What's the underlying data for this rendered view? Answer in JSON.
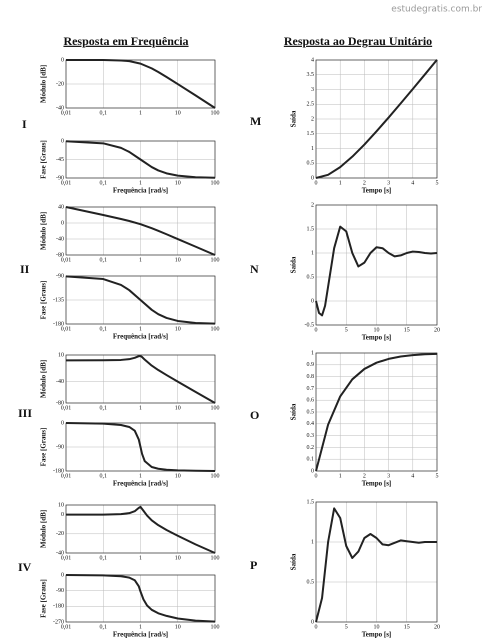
{
  "page": {
    "watermark": "estudegratis.com.br",
    "left_title": "Resposta em Frequência",
    "right_title": "Resposta ao Degrau Unitário",
    "row_labels": [
      "I",
      "II",
      "III",
      "IV"
    ],
    "step_labels": [
      "M",
      "N",
      "O",
      "P"
    ]
  },
  "chart_data": [
    {
      "type": "line",
      "xscale": "log",
      "ylabel": "Módulo [dB]",
      "color": "#222",
      "grid": true,
      "x": [
        0.01,
        0.1,
        0.3,
        0.5,
        1,
        2,
        3,
        5,
        10,
        30,
        100
      ],
      "values": [
        0,
        -0.04,
        -0.38,
        -0.97,
        -3.01,
        -6.99,
        -10,
        -14.15,
        -20.04,
        -29.5,
        -40
      ],
      "xlim": [
        0.01,
        100
      ],
      "xticks": [
        {
          "value": 0.01,
          "label": "0,01"
        },
        {
          "value": 0.1,
          "label": "0,1"
        },
        1,
        10,
        100
      ],
      "ylim": [
        -40,
        0
      ],
      "yticks": [
        -40,
        -20,
        0
      ]
    },
    {
      "type": "line",
      "xscale": "log",
      "ylabel": "Fase [Graus]",
      "xlabel": "Frequência [rad/s]",
      "color": "#222",
      "grid": true,
      "x": [
        0.01,
        0.1,
        0.3,
        0.5,
        1,
        2,
        3,
        5,
        10,
        30,
        100
      ],
      "values": [
        -0.6,
        -5.7,
        -16.7,
        -26.6,
        -45,
        -63.4,
        -71.6,
        -78.7,
        -84.3,
        -88.1,
        -89.4
      ],
      "xlim": [
        0.01,
        100
      ],
      "xticks": [
        {
          "value": 0.01,
          "label": "0,01"
        },
        {
          "value": 0.1,
          "label": "0,1"
        },
        1,
        10,
        100
      ],
      "ylim": [
        -90,
        0
      ],
      "yticks": [
        -90,
        -45,
        0
      ]
    },
    {
      "type": "line",
      "xscale": "log",
      "ylabel": "Módulo [dB]",
      "color": "#222",
      "grid": true,
      "x": [
        0.01,
        0.1,
        0.3,
        0.5,
        1,
        2,
        3,
        5,
        10,
        30,
        100
      ],
      "values": [
        40,
        19.96,
        10.08,
        5.05,
        -3.01,
        -13.01,
        -19.54,
        -28.13,
        -40.04,
        -59.08,
        -80
      ],
      "xlim": [
        0.01,
        100
      ],
      "xticks": [
        {
          "value": 0.01,
          "label": "0,01"
        },
        {
          "value": 0.1,
          "label": "0,1"
        },
        1,
        10,
        100
      ],
      "ylim": [
        -80,
        40
      ],
      "yticks": [
        -80,
        -40,
        0,
        40
      ]
    },
    {
      "type": "line",
      "xscale": "log",
      "ylabel": "Fase [Graus]",
      "xlabel": "Frequência [rad/s]",
      "color": "#222",
      "grid": true,
      "x": [
        0.01,
        0.1,
        0.3,
        0.5,
        1,
        2,
        3,
        5,
        10,
        30,
        100
      ],
      "values": [
        -90.6,
        -95.7,
        -106.7,
        -116.6,
        -135,
        -153.4,
        -161.6,
        -168.7,
        -174.3,
        -178.1,
        -179.4
      ],
      "xlim": [
        0.01,
        100
      ],
      "xticks": [
        {
          "value": 0.01,
          "label": "0,01"
        },
        {
          "value": 0.1,
          "label": "0,1"
        },
        1,
        10,
        100
      ],
      "ylim": [
        -180,
        -90
      ],
      "yticks": [
        -180,
        -135,
        -90
      ]
    },
    {
      "type": "line",
      "xscale": "log",
      "ylabel": "Módulo [dB]",
      "color": "#222",
      "grid": true,
      "x": [
        0.01,
        0.1,
        0.3,
        0.5,
        0.7,
        0.9,
        1,
        1.1,
        1.3,
        2,
        3,
        5,
        10,
        30,
        100
      ],
      "values": [
        0,
        0.08,
        0.74,
        2.2,
        4.7,
        7.81,
        7.96,
        6.24,
        1.27,
        -9.84,
        -18.16,
        -27.63,
        -39.92,
        -59.08,
        -80
      ],
      "xlim": [
        0.01,
        100
      ],
      "xticks": [
        {
          "value": 0.01,
          "label": "0,01"
        },
        {
          "value": 0.1,
          "label": "0,1"
        },
        1,
        10,
        100
      ],
      "ylim": [
        -80,
        10
      ],
      "yticks": [
        -80,
        -40,
        10
      ]
    },
    {
      "type": "line",
      "xscale": "log",
      "ylabel": "Fase [Graus]",
      "xlabel": "Frequência [rad/s]",
      "color": "#222",
      "grid": true,
      "x": [
        0.01,
        0.1,
        0.3,
        0.5,
        0.7,
        0.9,
        1,
        1.1,
        1.3,
        2,
        3,
        5,
        10,
        30,
        100
      ],
      "values": [
        -0.2,
        -2.3,
        -7.5,
        -14.9,
        -28.8,
        -62.2,
        -90,
        -115.5,
        -143,
        -165.1,
        -171.5,
        -175.2,
        -177.7,
        -179.2,
        -179.8
      ],
      "xlim": [
        0.01,
        100
      ],
      "xticks": [
        {
          "value": 0.01,
          "label": "0,01"
        },
        {
          "value": 0.1,
          "label": "0,1"
        },
        1,
        10,
        100
      ],
      "ylim": [
        -180,
        0
      ],
      "yticks": [
        -180,
        -90,
        0
      ]
    },
    {
      "type": "line",
      "xscale": "log",
      "ylabel": "Módulo [dB]",
      "color": "#222",
      "grid": true,
      "x": [
        0.01,
        0.1,
        0.3,
        0.5,
        0.7,
        0.9,
        1,
        1.2,
        1.5,
        2,
        3,
        5,
        10,
        30,
        100
      ],
      "values": [
        0,
        0,
        0.5,
        1.5,
        3.5,
        7,
        8,
        4,
        -1,
        -6,
        -11,
        -16,
        -22,
        -31,
        -40
      ],
      "xlim": [
        0.01,
        100
      ],
      "xticks": [
        {
          "value": 0.01,
          "label": "0,01"
        },
        {
          "value": 0.1,
          "label": "0,1"
        },
        1,
        10,
        100
      ],
      "ylim": [
        -40,
        10
      ],
      "yticks": [
        -40,
        -20,
        0,
        10
      ]
    },
    {
      "type": "line",
      "xscale": "log",
      "ylabel": "Fase [Graus]",
      "xlabel": "Frequência [rad/s]",
      "color": "#222",
      "grid": true,
      "x": [
        0.01,
        0.1,
        0.3,
        0.5,
        0.7,
        0.9,
        1,
        1.2,
        1.5,
        2,
        3,
        5,
        10,
        30,
        100
      ],
      "values": [
        0,
        -2,
        -7,
        -15,
        -30,
        -65,
        -95,
        -140,
        -175,
        -200,
        -220,
        -235,
        -250,
        -262,
        -268
      ],
      "xlim": [
        0.01,
        100
      ],
      "xticks": [
        {
          "value": 0.01,
          "label": "0,01"
        },
        {
          "value": 0.1,
          "label": "0,1"
        },
        1,
        10,
        100
      ],
      "ylim": [
        -270,
        0
      ],
      "yticks": [
        -270,
        -180,
        -90,
        0
      ]
    },
    {
      "type": "line",
      "ylabel": "Saída",
      "xlabel": "Tempo [s]",
      "color": "#222",
      "grid": true,
      "x": [
        0,
        0.5,
        1,
        1.5,
        2,
        2.5,
        3,
        3.5,
        4,
        4.5,
        5
      ],
      "values": [
        0,
        0.107,
        0.368,
        0.723,
        1.135,
        1.582,
        2.05,
        2.53,
        3.018,
        3.511,
        4.007
      ],
      "xlim": [
        0,
        5
      ],
      "xticks": [
        0,
        1,
        2,
        3,
        4,
        5
      ],
      "ylim": [
        0,
        4
      ],
      "yticks": [
        0,
        0.5,
        1,
        1.5,
        2,
        2.5,
        3,
        3.5,
        4
      ]
    },
    {
      "type": "line",
      "ylabel": "Saída",
      "xlabel": "Tempo [s]",
      "color": "#222",
      "grid": true,
      "x": [
        0,
        0.5,
        1,
        1.5,
        2,
        3,
        4,
        5,
        6,
        7,
        8,
        9,
        10,
        11,
        12,
        13,
        14,
        15,
        16,
        17,
        18,
        19,
        20
      ],
      "values": [
        0,
        -0.25,
        -0.3,
        -0.1,
        0.3,
        1.1,
        1.55,
        1.45,
        1,
        0.72,
        0.8,
        1,
        1.12,
        1.1,
        1,
        0.93,
        0.95,
        1,
        1.03,
        1.02,
        1,
        0.99,
        1
      ],
      "xlim": [
        0,
        20
      ],
      "xticks": [
        0,
        5,
        10,
        15,
        20
      ],
      "ylim": [
        -0.5,
        2
      ],
      "yticks": [
        -0.5,
        0,
        0.5,
        1,
        1.5,
        2
      ]
    },
    {
      "type": "line",
      "ylabel": "Saída",
      "xlabel": "Tempo [s]",
      "color": "#222",
      "grid": true,
      "x": [
        0,
        0.5,
        1,
        1.5,
        2,
        2.5,
        3,
        3.5,
        4,
        4.5,
        5
      ],
      "values": [
        0,
        0.393,
        0.632,
        0.777,
        0.865,
        0.918,
        0.95,
        0.97,
        0.982,
        0.989,
        0.993
      ],
      "xlim": [
        0,
        5
      ],
      "xticks": [
        0,
        1,
        2,
        3,
        4,
        5
      ],
      "ylim": [
        0,
        1
      ],
      "yticks": [
        0,
        0.1,
        0.2,
        0.3,
        0.4,
        0.5,
        0.6,
        0.7,
        0.8,
        0.9,
        1
      ]
    },
    {
      "type": "line",
      "ylabel": "Saída",
      "xlabel": "Tempo [s]",
      "color": "#222",
      "grid": true,
      "x": [
        0,
        1,
        2,
        3,
        4,
        5,
        6,
        7,
        8,
        9,
        10,
        11,
        12,
        13,
        14,
        15,
        16,
        17,
        18,
        19,
        20
      ],
      "values": [
        0,
        0.3,
        1,
        1.42,
        1.3,
        0.95,
        0.8,
        0.88,
        1.05,
        1.1,
        1.05,
        0.97,
        0.96,
        0.99,
        1.02,
        1.01,
        1,
        0.99,
        1,
        1,
        1
      ],
      "xlim": [
        0,
        20
      ],
      "xticks": [
        0,
        5,
        10,
        15,
        20
      ],
      "ylim": [
        0,
        1.5
      ],
      "yticks": [
        0,
        0.5,
        1,
        1.5
      ]
    }
  ]
}
